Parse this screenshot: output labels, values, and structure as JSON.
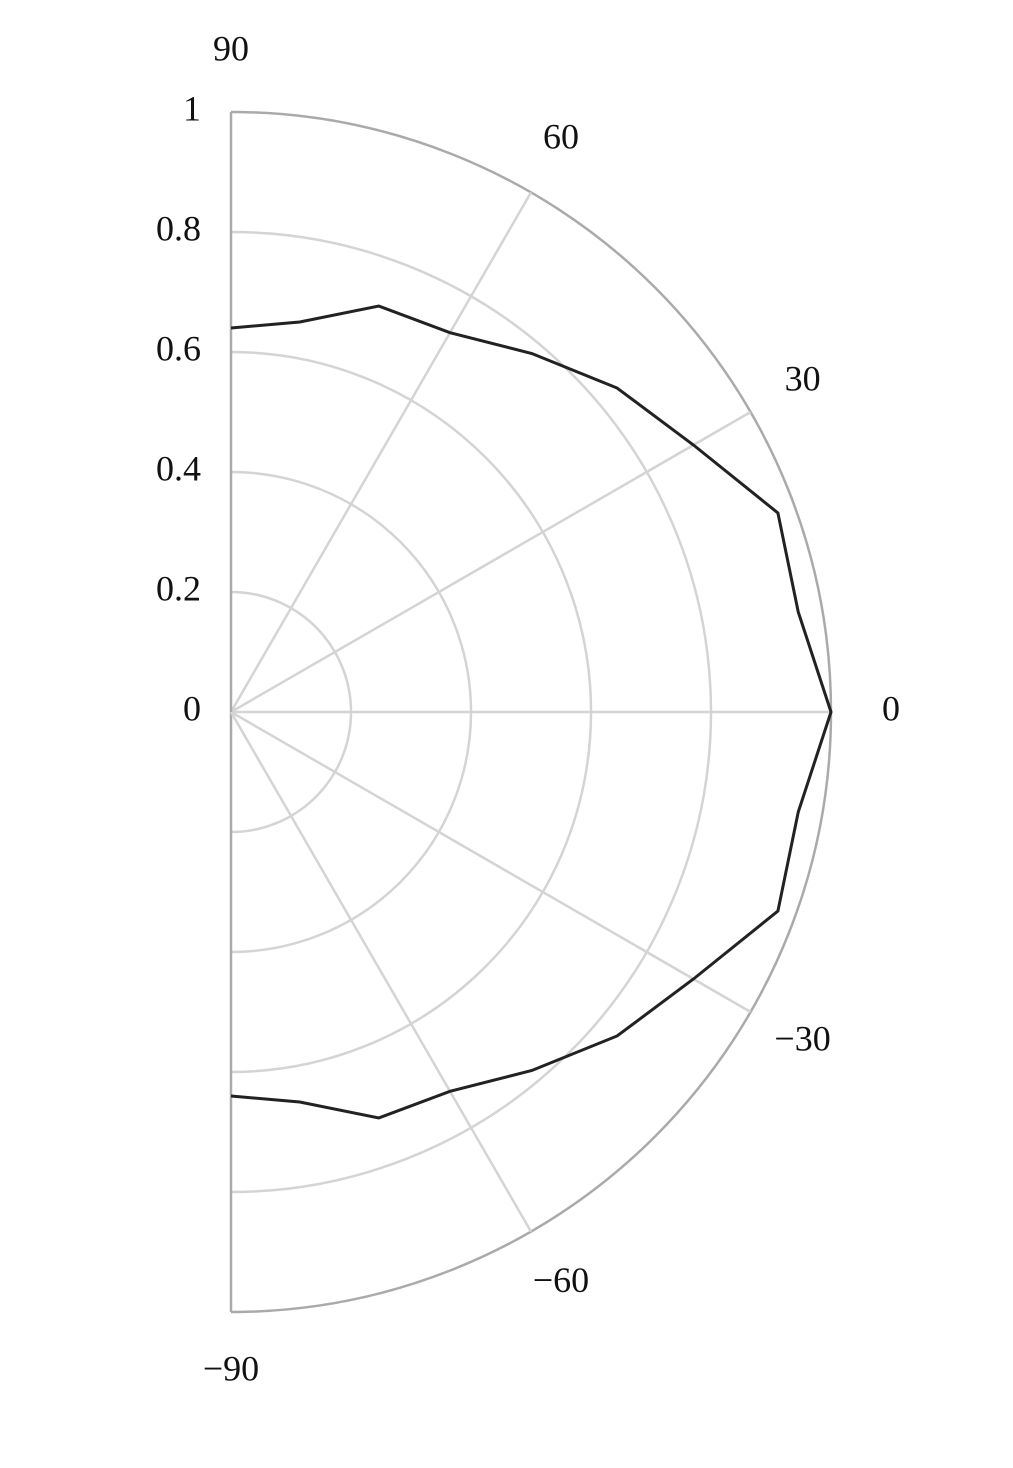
{
  "chart_data": {
    "type": "polar",
    "theta": [
      -90,
      -80,
      -70,
      -60,
      -50,
      -40,
      -30,
      -20,
      -10,
      0,
      10,
      20,
      30,
      40,
      50,
      60,
      70,
      80,
      90
    ],
    "values": [
      0.64,
      0.66,
      0.72,
      0.73,
      0.78,
      0.84,
      0.89,
      0.97,
      0.96,
      1.0,
      0.96,
      0.97,
      0.89,
      0.84,
      0.78,
      0.73,
      0.72,
      0.66,
      0.64
    ],
    "color": "#222222",
    "rlim": [
      0,
      1
    ],
    "rticks": [
      0,
      0.2,
      0.4,
      0.6,
      0.8,
      1
    ],
    "thetalim": [
      -90,
      90
    ],
    "thetaticks": [
      {
        "value": -90,
        "label": "−90"
      },
      {
        "value": -60,
        "label": "−60"
      },
      {
        "value": -30,
        "label": "−30"
      },
      0,
      30,
      60,
      90
    ],
    "grid": true
  }
}
